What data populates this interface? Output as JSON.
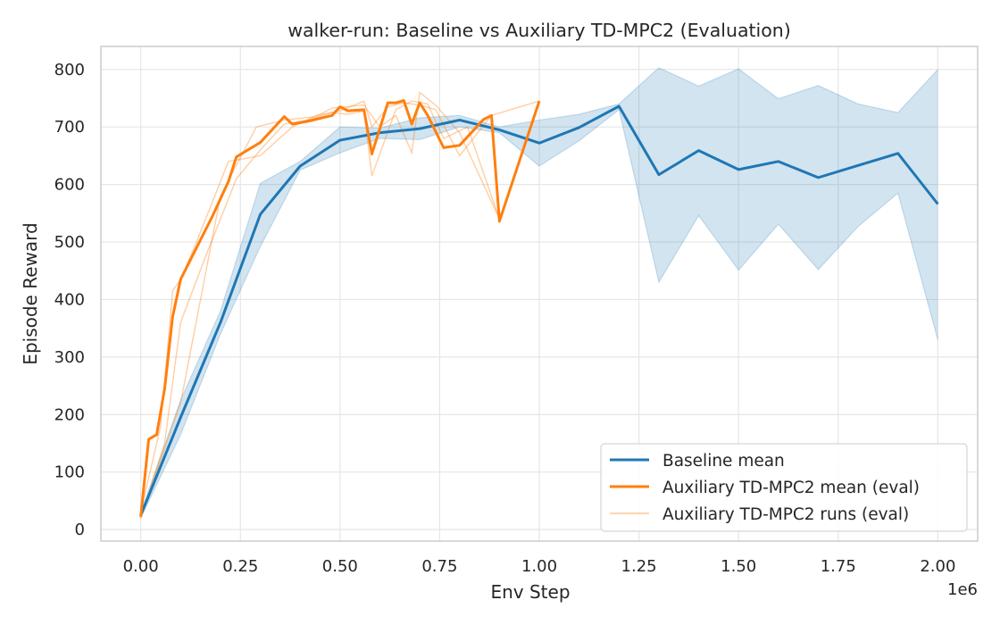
{
  "chart_data": {
    "type": "line",
    "title": "walker-run: Baseline vs Auxiliary TD-MPC2 (Evaluation)",
    "xlabel": "Env Step",
    "ylabel": "Episode Reward",
    "x_scale_label": "1e6",
    "xlim": [
      -0.1,
      2.1
    ],
    "ylim": [
      -20,
      840
    ],
    "x_ticks": [
      0.0,
      0.25,
      0.5,
      0.75,
      1.0,
      1.25,
      1.5,
      1.75,
      2.0
    ],
    "x_tick_labels": [
      "0.00",
      "0.25",
      "0.50",
      "0.75",
      "1.00",
      "1.25",
      "1.50",
      "1.75",
      "2.00"
    ],
    "y_ticks": [
      0,
      100,
      200,
      300,
      400,
      500,
      600,
      700,
      800
    ],
    "y_tick_labels": [
      "0",
      "100",
      "200",
      "300",
      "400",
      "500",
      "600",
      "700",
      "800"
    ],
    "grid": true,
    "legend_position": "bottom-right",
    "colors": {
      "baseline": "#1f77b4",
      "baseline_band": "#1f77b4",
      "auxiliary": "#ff7f0e"
    },
    "series": [
      {
        "name": "Baseline mean",
        "kind": "mean",
        "color": "#1f77b4",
        "x": [
          0.0,
          0.1,
          0.2,
          0.3,
          0.4,
          0.5,
          0.6,
          0.7,
          0.8,
          0.9,
          1.0,
          1.1,
          1.2,
          1.3,
          1.4,
          1.5,
          1.6,
          1.7,
          1.8,
          1.9,
          2.0
        ],
        "y": [
          25,
          195,
          360,
          548,
          632,
          677,
          690,
          697,
          712,
          695,
          672,
          699,
          736,
          617,
          659,
          626,
          640,
          612,
          633,
          654,
          566
        ],
        "band_low": [
          20,
          165,
          340,
          492,
          625,
          655,
          680,
          678,
          700,
          690,
          632,
          676,
          730,
          430,
          546,
          451,
          531,
          452,
          527,
          585,
          330
        ],
        "band_high": [
          30,
          225,
          380,
          602,
          640,
          700,
          698,
          716,
          720,
          700,
          712,
          722,
          740,
          803,
          771,
          801,
          749,
          772,
          740,
          725,
          800
        ]
      },
      {
        "name": "Auxiliary TD-MPC2 mean (eval)",
        "kind": "mean",
        "color": "#ff7f0e",
        "x": [
          0.0,
          0.02,
          0.04,
          0.06,
          0.08,
          0.1,
          0.14,
          0.18,
          0.22,
          0.24,
          0.3,
          0.36,
          0.38,
          0.42,
          0.48,
          0.5,
          0.52,
          0.56,
          0.58,
          0.62,
          0.64,
          0.66,
          0.68,
          0.7,
          0.72,
          0.76,
          0.8,
          0.86,
          0.88,
          0.9,
          1.0
        ],
        "y": [
          22,
          157,
          165,
          245,
          370,
          435,
          490,
          545,
          605,
          648,
          673,
          718,
          705,
          710,
          720,
          735,
          728,
          730,
          653,
          742,
          742,
          746,
          705,
          742,
          720,
          664,
          668,
          713,
          720,
          536,
          745
        ]
      },
      {
        "name": "Auxiliary TD-MPC2 runs (eval)",
        "kind": "runs",
        "color": "#ff7f0e",
        "runs": [
          {
            "x": [
              0.0,
              0.05,
              0.08,
              0.1,
              0.14,
              0.22,
              0.3,
              0.38,
              0.44,
              0.5,
              0.56,
              0.58,
              0.62,
              0.66,
              0.7,
              0.74,
              0.8,
              0.88,
              1.0
            ],
            "y": [
              30,
              180,
              415,
              435,
              500,
              640,
              650,
              700,
              720,
              728,
              745,
              700,
              735,
              742,
              738,
              730,
              650,
              720,
              745
            ]
          },
          {
            "x": [
              0.0,
              0.06,
              0.1,
              0.16,
              0.24,
              0.3,
              0.36,
              0.42,
              0.48,
              0.52,
              0.56,
              0.58,
              0.64,
              0.68,
              0.72,
              0.76,
              0.82,
              0.9
            ],
            "y": [
              20,
              150,
              360,
              470,
              610,
              660,
              705,
              712,
              725,
              722,
              728,
              615,
              730,
              745,
              740,
              680,
              700,
              540
            ]
          },
          {
            "x": [
              0.0,
              0.1,
              0.2,
              0.29,
              0.36,
              0.44,
              0.48,
              0.56,
              0.6,
              0.64,
              0.68,
              0.7,
              0.74,
              0.8,
              0.9
            ],
            "y": [
              22,
              220,
              580,
              700,
              712,
              718,
              733,
              738,
              700,
              720,
              655,
              760,
              738,
              690,
              540
            ]
          }
        ]
      }
    ]
  }
}
